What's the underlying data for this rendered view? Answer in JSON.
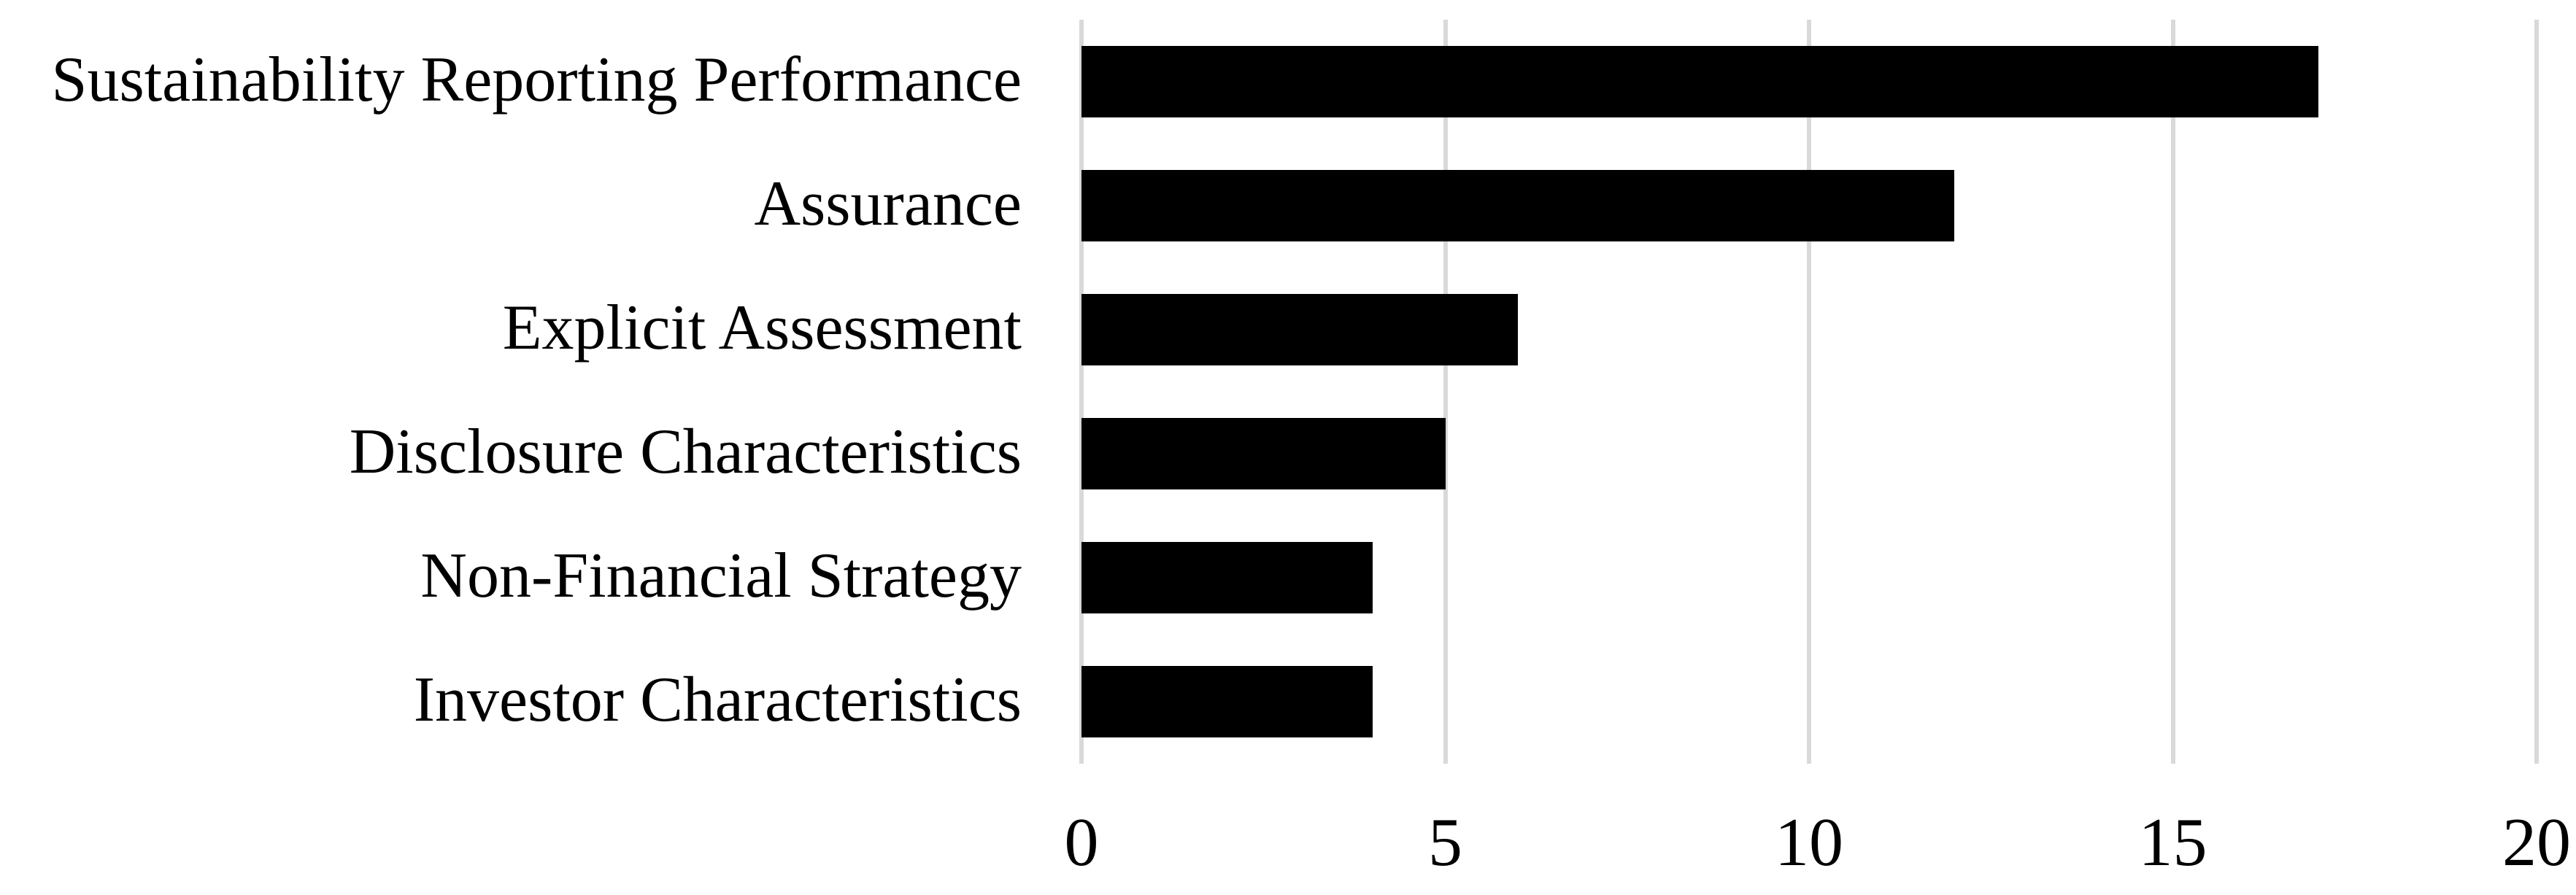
{
  "chart_data": {
    "type": "bar",
    "orientation": "horizontal",
    "title": "",
    "xlabel": "",
    "ylabel": "",
    "categories": [
      "Sustainability Reporting Performance",
      "Assurance",
      "Explicit Assessment",
      "Disclosure Characteristics",
      "Non-Financial Strategy",
      "Investor Characteristics"
    ],
    "values": [
      17,
      12,
      6,
      5,
      4,
      4
    ],
    "x_ticks": [
      0,
      5,
      10,
      15,
      20
    ],
    "x_tick_labels": [
      "0",
      "5",
      "10",
      "15",
      "20"
    ],
    "xlim": [
      0,
      20
    ],
    "grid": "vertical gridlines only",
    "legend": "none",
    "colors": {
      "bar": "#000000",
      "gridline": "#d9d9d9",
      "background": "#ffffff",
      "text": "#000000"
    }
  }
}
